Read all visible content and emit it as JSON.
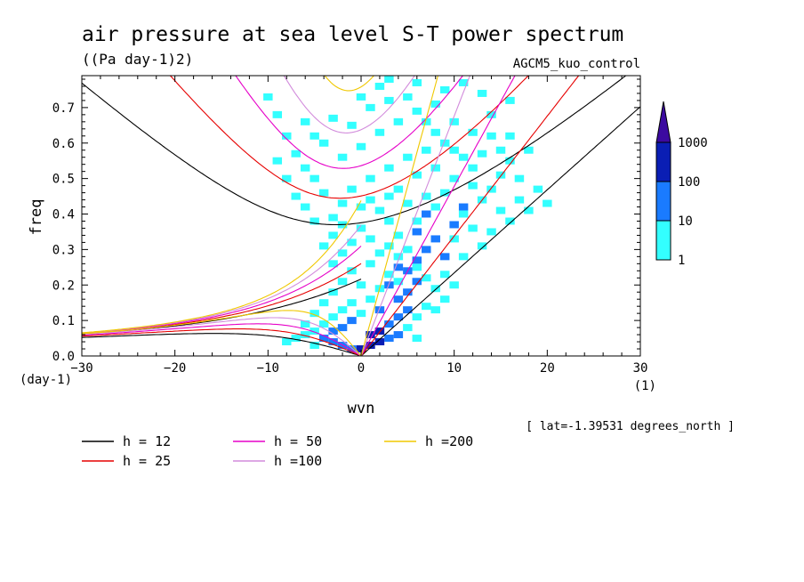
{
  "chart_data": {
    "type": "heatmap",
    "title": "air pressure at sea level S-T power spectrum",
    "units": "((Pa day-1)2)",
    "model": "AGCM5_kuo_control",
    "xlabel": "wvn",
    "ylabel": "freq",
    "x_unit": "(1)",
    "y_unit": "(day-1)",
    "xlim": [
      -30,
      30
    ],
    "ylim": [
      0,
      0.79
    ],
    "x_ticks": [
      "-30",
      "-20",
      "-10",
      "0",
      "10",
      "20",
      "30"
    ],
    "y_ticks": [
      "0.0",
      "0.1",
      "0.2",
      "0.3",
      "0.4",
      "0.5",
      "0.6",
      "0.7"
    ],
    "annotation": "[ lat=-1.39531 degrees_north ]",
    "colorbar": {
      "levels": [
        "1",
        "10",
        "100",
        "1000"
      ],
      "colors": [
        "#33ffff",
        "#1a7bff",
        "#0a1eb4",
        "#3c0aa0"
      ]
    },
    "dispersion_curves": [
      {
        "label": "h = 12",
        "h": 12,
        "color": "#000000"
      },
      {
        "label": "h = 25",
        "h": 25,
        "color": "#e60000"
      },
      {
        "label": "h = 50",
        "h": 50,
        "color": "#e600c8"
      },
      {
        "label": "h =100",
        "h": 100,
        "color": "#d28cdc"
      },
      {
        "label": "h =200",
        "h": 200,
        "color": "#f0c800"
      }
    ],
    "spectrum_cells": [
      [
        0,
        0.02,
        3
      ],
      [
        1,
        0.03,
        3
      ],
      [
        2,
        0.04,
        3
      ],
      [
        1,
        0.06,
        3
      ],
      [
        2,
        0.07,
        3
      ],
      [
        -1,
        0.02,
        2
      ],
      [
        -2,
        0.03,
        2
      ],
      [
        -3,
        0.04,
        2
      ],
      [
        -4,
        0.05,
        2
      ],
      [
        -3,
        0.07,
        2
      ],
      [
        3,
        0.05,
        2
      ],
      [
        4,
        0.06,
        2
      ],
      [
        3,
        0.09,
        2
      ],
      [
        4,
        0.11,
        2
      ],
      [
        5,
        0.13,
        2
      ],
      [
        4,
        0.16,
        2
      ],
      [
        5,
        0.18,
        2
      ],
      [
        6,
        0.21,
        2
      ],
      [
        5,
        0.24,
        2
      ],
      [
        6,
        0.27,
        2
      ],
      [
        7,
        0.3,
        2
      ],
      [
        8,
        0.33,
        2
      ],
      [
        9,
        0.28,
        2
      ],
      [
        -2,
        0.08,
        2
      ],
      [
        -1,
        0.1,
        2
      ],
      [
        2,
        0.13,
        2
      ],
      [
        3,
        0.2,
        2
      ],
      [
        4,
        0.25,
        2
      ],
      [
        6,
        0.35,
        2
      ],
      [
        7,
        0.4,
        2
      ],
      [
        10,
        0.37,
        2
      ],
      [
        11,
        0.42,
        2
      ],
      [
        -5,
        0.07,
        1
      ],
      [
        -6,
        0.06,
        1
      ],
      [
        -4,
        0.09,
        1
      ],
      [
        -3,
        0.11,
        1
      ],
      [
        -2,
        0.13,
        1
      ],
      [
        -1,
        0.15,
        1
      ],
      [
        0,
        0.12,
        1
      ],
      [
        1,
        0.16,
        1
      ],
      [
        2,
        0.19,
        1
      ],
      [
        3,
        0.23,
        1
      ],
      [
        4,
        0.21,
        1
      ],
      [
        0,
        0.2,
        1
      ],
      [
        -1,
        0.24,
        1
      ],
      [
        1,
        0.26,
        1
      ],
      [
        2,
        0.29,
        1
      ],
      [
        3,
        0.31,
        1
      ],
      [
        5,
        0.3,
        1
      ],
      [
        4,
        0.34,
        1
      ],
      [
        6,
        0.38,
        1
      ],
      [
        8,
        0.42,
        1
      ],
      [
        9,
        0.46,
        1
      ],
      [
        7,
        0.45,
        1
      ],
      [
        5,
        0.43,
        1
      ],
      [
        3,
        0.38,
        1
      ],
      [
        1,
        0.33,
        1
      ],
      [
        0,
        0.36,
        1
      ],
      [
        2,
        0.41,
        1
      ],
      [
        4,
        0.47,
        1
      ],
      [
        6,
        0.51,
        1
      ],
      [
        8,
        0.53,
        1
      ],
      [
        10,
        0.5,
        1
      ],
      [
        12,
        0.48,
        1
      ],
      [
        13,
        0.44,
        1
      ],
      [
        11,
        0.4,
        1
      ],
      [
        10,
        0.33,
        1
      ],
      [
        12,
        0.36,
        1
      ],
      [
        14,
        0.47,
        1
      ],
      [
        15,
        0.51,
        1
      ],
      [
        17,
        0.5,
        1
      ],
      [
        19,
        0.47,
        1
      ],
      [
        16,
        0.55,
        1
      ],
      [
        13,
        0.57,
        1
      ],
      [
        11,
        0.56,
        1
      ],
      [
        9,
        0.6,
        1
      ],
      [
        7,
        0.58,
        1
      ],
      [
        5,
        0.56,
        1
      ],
      [
        3,
        0.53,
        1
      ],
      [
        1,
        0.5,
        1
      ],
      [
        -1,
        0.47,
        1
      ],
      [
        -2,
        0.43,
        1
      ],
      [
        -3,
        0.39,
        1
      ],
      [
        -4,
        0.46,
        1
      ],
      [
        -5,
        0.5,
        1
      ],
      [
        -6,
        0.53,
        1
      ],
      [
        -7,
        0.57,
        1
      ],
      [
        -8,
        0.62,
        1
      ],
      [
        -9,
        0.68,
        1
      ],
      [
        -10,
        0.73,
        1
      ],
      [
        -6,
        0.66,
        1
      ],
      [
        -4,
        0.6,
        1
      ],
      [
        -2,
        0.56,
        1
      ],
      [
        0,
        0.59,
        1
      ],
      [
        2,
        0.63,
        1
      ],
      [
        4,
        0.66,
        1
      ],
      [
        6,
        0.69,
        1
      ],
      [
        8,
        0.71,
        1
      ],
      [
        10,
        0.66,
        1
      ],
      [
        12,
        0.63,
        1
      ],
      [
        14,
        0.62,
        1
      ],
      [
        9,
        0.75,
        1
      ],
      [
        11,
        0.77,
        1
      ],
      [
        13,
        0.74,
        1
      ],
      [
        6,
        0.77,
        1
      ],
      [
        3,
        0.72,
        1
      ],
      [
        1,
        0.7,
        1
      ],
      [
        -1,
        0.65,
        1
      ],
      [
        3,
        0.78,
        1
      ],
      [
        5,
        0.73,
        1
      ],
      [
        -2,
        0.29,
        1
      ],
      [
        -3,
        0.26,
        1
      ],
      [
        -1,
        0.32,
        1
      ],
      [
        4,
        0.28,
        1
      ],
      [
        6,
        0.25,
        1
      ],
      [
        7,
        0.22,
        1
      ],
      [
        8,
        0.19,
        1
      ],
      [
        9,
        0.16,
        1
      ],
      [
        7,
        0.14,
        1
      ],
      [
        6,
        0.11,
        1
      ],
      [
        5,
        0.08,
        1
      ],
      [
        6,
        0.05,
        1
      ],
      [
        -7,
        0.05,
        1
      ],
      [
        -8,
        0.04,
        1
      ],
      [
        -5,
        0.03,
        1
      ],
      [
        -6,
        0.09,
        1
      ],
      [
        -5,
        0.12,
        1
      ],
      [
        -4,
        0.15,
        1
      ],
      [
        -3,
        0.18,
        1
      ],
      [
        -2,
        0.21,
        1
      ],
      [
        -4,
        0.31,
        1
      ],
      [
        -3,
        0.34,
        1
      ],
      [
        -5,
        0.38,
        1
      ],
      [
        -6,
        0.42,
        1
      ],
      [
        -7,
        0.45,
        1
      ],
      [
        -2,
        0.37,
        1
      ],
      [
        0,
        0.42,
        1
      ],
      [
        1,
        0.44,
        1
      ],
      [
        3,
        0.45,
        1
      ],
      [
        8,
        0.63,
        1
      ],
      [
        10,
        0.58,
        1
      ],
      [
        15,
        0.58,
        1
      ],
      [
        17,
        0.44,
        1
      ],
      [
        18,
        0.41,
        1
      ],
      [
        20,
        0.43,
        1
      ],
      [
        15,
        0.41,
        1
      ],
      [
        16,
        0.38,
        1
      ],
      [
        14,
        0.35,
        1
      ],
      [
        13,
        0.31,
        1
      ],
      [
        11,
        0.28,
        1
      ],
      [
        9,
        0.23,
        1
      ],
      [
        8,
        0.13,
        1
      ],
      [
        10,
        0.2,
        1
      ],
      [
        12,
        0.53,
        1
      ],
      [
        16,
        0.62,
        1
      ],
      [
        -8,
        0.5,
        1
      ],
      [
        -9,
        0.55,
        1
      ],
      [
        -5,
        0.62,
        1
      ],
      [
        -3,
        0.67,
        1
      ],
      [
        0,
        0.73,
        1
      ],
      [
        2,
        0.76,
        1
      ],
      [
        7,
        0.66,
        1
      ],
      [
        14,
        0.68,
        1
      ],
      [
        16,
        0.72,
        1
      ],
      [
        18,
        0.58,
        1
      ]
    ]
  }
}
